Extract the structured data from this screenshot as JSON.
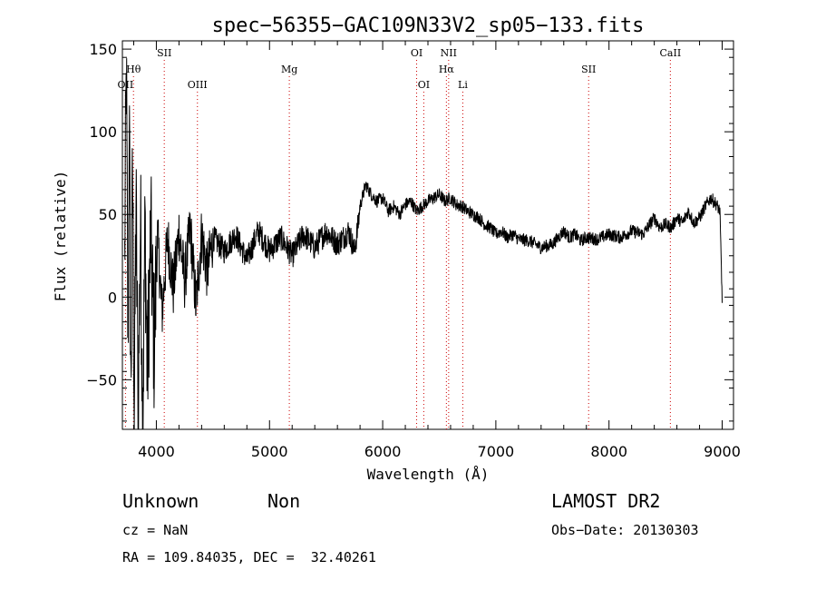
{
  "chart_data": {
    "type": "line",
    "title": "spec−56355−GAC109N33V2_sp05−133.fits",
    "xlabel": "Wavelength (Å)",
    "ylabel": "Flux (relative)",
    "xlim": [
      3700,
      9100
    ],
    "ylim": [
      -80,
      155
    ],
    "x_ticks": [
      4000,
      5000,
      6000,
      7000,
      8000,
      9000
    ],
    "y_ticks": [
      -50,
      0,
      50,
      100,
      150
    ],
    "x_tick_labels": [
      "4000",
      "5000",
      "6000",
      "7000",
      "8000",
      "9000"
    ],
    "y_tick_labels": [
      "−50",
      "0",
      "50",
      "100",
      "150"
    ],
    "grid": false,
    "series": [
      {
        "color": "#000000",
        "x": [
          3720,
          3735,
          3750,
          3760,
          3775,
          3790,
          3805,
          3820,
          3840,
          3860,
          3880,
          3900,
          3920,
          3950,
          3980,
          4010,
          4050,
          4100,
          4150,
          4200,
          4250,
          4300,
          4350,
          4400,
          4450,
          4500,
          4600,
          4700,
          4800,
          4900,
          5000,
          5100,
          5200,
          5300,
          5400,
          5500,
          5600,
          5700,
          5750,
          5780,
          5800,
          5850,
          5900,
          5950,
          6000,
          6050,
          6100,
          6150,
          6200,
          6250,
          6300,
          6350,
          6400,
          6450,
          6500,
          6550,
          6600,
          6650,
          6700,
          6750,
          6800,
          6850,
          6900,
          6950,
          7000,
          7050,
          7100,
          7150,
          7200,
          7300,
          7400,
          7500,
          7600,
          7650,
          7700,
          7750,
          7800,
          7900,
          8000,
          8100,
          8200,
          8300,
          8400,
          8450,
          8500,
          8550,
          8600,
          8650,
          8700,
          8750,
          8800,
          8850,
          8900,
          8950,
          8980,
          8995,
          9000
        ],
        "y": [
          20,
          140,
          -40,
          120,
          -60,
          80,
          -75,
          60,
          -70,
          50,
          -78,
          45,
          -50,
          40,
          -30,
          38,
          -10,
          36,
          5,
          40,
          10,
          42,
          -5,
          38,
          15,
          36,
          28,
          38,
          22,
          40,
          28,
          36,
          25,
          38,
          30,
          40,
          32,
          40,
          28,
          42,
          55,
          68,
          62,
          58,
          60,
          52,
          55,
          50,
          56,
          58,
          52,
          55,
          58,
          60,
          62,
          58,
          60,
          56,
          55,
          52,
          50,
          48,
          44,
          42,
          38,
          40,
          36,
          38,
          35,
          34,
          30,
          32,
          40,
          36,
          38,
          34,
          36,
          35,
          38,
          36,
          40,
          38,
          48,
          42,
          44,
          42,
          48,
          45,
          52,
          45,
          48,
          55,
          60,
          56,
          52,
          10,
          0
        ]
      }
    ],
    "annotations": [
      {
        "label": "OII",
        "x": 3727,
        "row": 3
      },
      {
        "label": "Hθ",
        "x": 3798,
        "row": 2
      },
      {
        "label": "SII",
        "x": 4070,
        "row": 1
      },
      {
        "label": "OIII",
        "x": 4363,
        "row": 3
      },
      {
        "label": "Mg",
        "x": 5175,
        "row": 2
      },
      {
        "label": "OI",
        "x": 6300,
        "row": 1
      },
      {
        "label": "OI",
        "x": 6363,
        "row": 3
      },
      {
        "label": "NII",
        "x": 6583,
        "row": 1
      },
      {
        "label": "Hα",
        "x": 6563,
        "row": 2
      },
      {
        "label": "Li",
        "x": 6708,
        "row": 3
      },
      {
        "label": "SII",
        "x": 7820,
        "row": 2
      },
      {
        "label": "CaII",
        "x": 8542,
        "row": 1
      }
    ]
  },
  "info": {
    "class": "Unknown",
    "subclass": "Non",
    "survey": "LAMOST DR2",
    "cz": "cz = NaN",
    "obsdate": "Obs−Date: 20130303",
    "radec": "RA = 109.84035, DEC =  32.40261"
  }
}
